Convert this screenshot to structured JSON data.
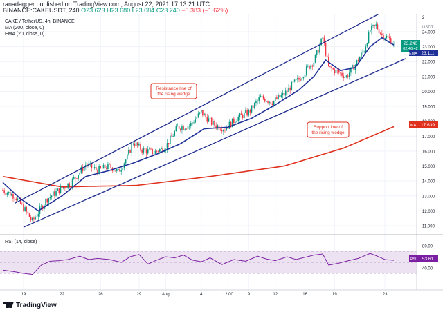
{
  "header": {
    "published_by": "ranadagger published on TradingView.com, August 22, 2021 17:13:21 UTC",
    "symbol_line": "BINANCE:CAKEUSDT, 240",
    "open": "O23.623",
    "high": "H23.680",
    "low": "L23.084",
    "close": "C23.240",
    "change": "−0.383 (−1.62%)"
  },
  "legend": {
    "title": "CAKE / TetherUS, 4h, BINANCE",
    "ma": "MA (200, close, 0)",
    "ema": "EMA (20, close, 0)",
    "rsi": "RSI (14, close)"
  },
  "annotations": {
    "resistance": [
      "Resistance line of",
      "the rising wedge"
    ],
    "support": [
      "Support line of",
      "the rising wedge"
    ]
  },
  "price_badge": {
    "value": "23.240",
    "countdown": "02:46:42"
  },
  "axis_badges": {
    "ema": {
      "tag": "EMA",
      "value": "23.111"
    },
    "ma": {
      "tag": "MA",
      "value": "17.639"
    },
    "rsi": {
      "tag": "RSI",
      "value": "53.61"
    }
  },
  "footer": {
    "brand": "TradingView"
  },
  "colors": {
    "up": "#089981",
    "down": "#f23645",
    "ema": "#1e2f97",
    "ma": "#e0301e",
    "trendline": "#1c2a8c",
    "rsi": "#7b1fa2",
    "rsi_band": "#ede2f2",
    "annotation": "#e0301e"
  },
  "chart_data": {
    "type": "candlestick",
    "y_unit": "USDT",
    "ylim": [
      10.4,
      25.2
    ],
    "x_ticks": [
      "19",
      "22",
      "26",
      "29",
      "Aug",
      "4",
      "12:00",
      "9",
      "12",
      "16",
      "19",
      "23"
    ],
    "y_ticks": [
      "11.000",
      "12.000",
      "13.000",
      "14.000",
      "15.000",
      "16.000",
      "17.000",
      "18.000",
      "19.000",
      "20.000",
      "21.000",
      "22.000",
      "23.000",
      "24.000",
      "2"
    ],
    "price_anchors": [
      [
        0,
        13.4
      ],
      [
        8,
        13.0
      ],
      [
        14,
        12.2
      ],
      [
        20,
        11.3
      ],
      [
        24,
        11.9
      ],
      [
        30,
        12.8
      ],
      [
        38,
        13.4
      ],
      [
        46,
        13.9
      ],
      [
        52,
        14.6
      ],
      [
        56,
        15.1
      ],
      [
        64,
        14.7
      ],
      [
        72,
        15.0
      ],
      [
        78,
        14.6
      ],
      [
        84,
        15.6
      ],
      [
        88,
        16.6
      ],
      [
        94,
        16.1
      ],
      [
        102,
        15.9
      ],
      [
        110,
        16.3
      ],
      [
        118,
        17.6
      ],
      [
        126,
        17.7
      ],
      [
        134,
        18.6
      ],
      [
        142,
        17.8
      ],
      [
        150,
        17.5
      ],
      [
        158,
        18.2
      ],
      [
        166,
        18.6
      ],
      [
        174,
        19.6
      ],
      [
        182,
        19.3
      ],
      [
        190,
        19.8
      ],
      [
        196,
        20.5
      ],
      [
        200,
        20.8
      ],
      [
        206,
        21.6
      ],
      [
        210,
        22.0
      ],
      [
        216,
        23.6
      ],
      [
        220,
        21.6
      ],
      [
        226,
        21.3
      ],
      [
        232,
        21.0
      ],
      [
        238,
        21.8
      ],
      [
        244,
        22.8
      ],
      [
        248,
        24.1
      ],
      [
        252,
        24.4
      ],
      [
        256,
        23.8
      ],
      [
        260,
        23.6
      ],
      [
        264,
        23.24
      ]
    ],
    "ma200_anchors": [
      [
        0,
        14.3
      ],
      [
        40,
        13.6
      ],
      [
        90,
        13.7
      ],
      [
        140,
        14.3
      ],
      [
        190,
        15.0
      ],
      [
        230,
        16.2
      ],
      [
        264,
        17.64
      ]
    ],
    "ema20_anchors": [
      [
        0,
        13.9
      ],
      [
        12,
        12.8
      ],
      [
        24,
        12.0
      ],
      [
        40,
        13.0
      ],
      [
        56,
        14.3
      ],
      [
        72,
        14.7
      ],
      [
        88,
        15.2
      ],
      [
        104,
        15.8
      ],
      [
        120,
        16.5
      ],
      [
        136,
        17.5
      ],
      [
        152,
        17.6
      ],
      [
        168,
        18.2
      ],
      [
        184,
        19.1
      ],
      [
        200,
        20.1
      ],
      [
        210,
        21.0
      ],
      [
        218,
        22.1
      ],
      [
        228,
        21.4
      ],
      [
        238,
        21.6
      ],
      [
        248,
        23.0
      ],
      [
        256,
        23.6
      ],
      [
        264,
        23.11
      ]
    ],
    "resistance_line": [
      [
        8,
        12.5
      ],
      [
        256,
        25.3
      ]
    ],
    "support_line": [
      [
        14,
        10.9
      ],
      [
        272,
        22.2
      ]
    ],
    "rsi_ticks": [
      "40.00",
      "60.00",
      "80.00"
    ],
    "rsi_band": [
      30,
      70
    ],
    "rsi_last": 53.61,
    "rsi_anchors": [
      [
        0,
        36
      ],
      [
        8,
        33
      ],
      [
        14,
        30
      ],
      [
        20,
        28
      ],
      [
        26,
        45
      ],
      [
        32,
        52
      ],
      [
        38,
        53
      ],
      [
        44,
        55
      ],
      [
        52,
        61
      ],
      [
        58,
        55
      ],
      [
        64,
        57
      ],
      [
        72,
        55
      ],
      [
        80,
        50
      ],
      [
        86,
        60
      ],
      [
        92,
        64
      ],
      [
        98,
        47
      ],
      [
        104,
        54
      ],
      [
        110,
        60
      ],
      [
        116,
        58
      ],
      [
        122,
        63
      ],
      [
        128,
        54
      ],
      [
        134,
        51
      ],
      [
        140,
        58
      ],
      [
        148,
        46
      ],
      [
        156,
        55
      ],
      [
        164,
        52
      ],
      [
        172,
        61
      ],
      [
        178,
        56
      ],
      [
        184,
        53
      ],
      [
        192,
        60
      ],
      [
        198,
        55
      ],
      [
        204,
        59
      ],
      [
        210,
        63
      ],
      [
        216,
        65
      ],
      [
        220,
        45
      ],
      [
        226,
        48
      ],
      [
        232,
        52
      ],
      [
        240,
        57
      ],
      [
        248,
        66
      ],
      [
        252,
        62
      ],
      [
        258,
        55
      ],
      [
        264,
        53.61
      ]
    ]
  }
}
